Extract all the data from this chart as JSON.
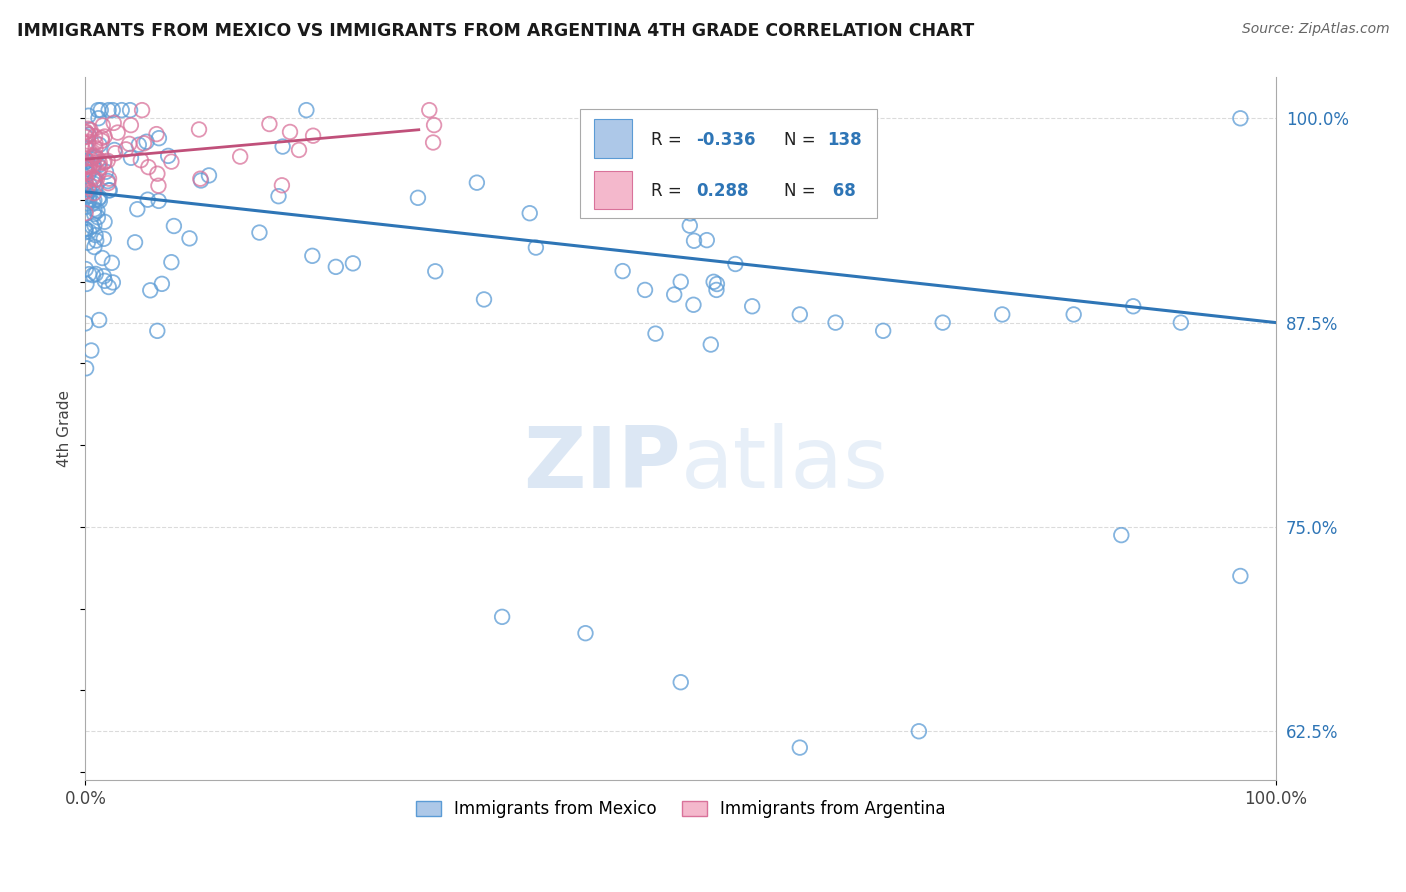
{
  "title": "IMMIGRANTS FROM MEXICO VS IMMIGRANTS FROM ARGENTINA 4TH GRADE CORRELATION CHART",
  "source": "Source: ZipAtlas.com",
  "ylabel": "4th Grade",
  "xlim": [
    0.0,
    1.0
  ],
  "ylim": [
    0.595,
    1.025
  ],
  "ytick_labels_right": [
    "62.5%",
    "75.0%",
    "87.5%",
    "100.0%"
  ],
  "ytick_vals_right": [
    0.625,
    0.75,
    0.875,
    1.0
  ],
  "mexico_color": "#adc8e8",
  "mexico_edge": "#5b9bd5",
  "argentina_color": "#f4b8cc",
  "argentina_edge": "#d9729a",
  "trendline_mexico_color": "#2e75b6",
  "trendline_argentina_color": "#c0507a",
  "legend_box_color": "#adc8e8",
  "legend_box_argentina": "#f4b8cc",
  "legend_r_color": "#2e75b6",
  "legend_n_color": "#2e75b6",
  "watermark_zip": "ZIP",
  "watermark_atlas": "atlas",
  "watermark_color_zip": "#c5d8ee",
  "watermark_color_atlas": "#c5d8ee",
  "grid_color": "#d3d3d3",
  "background_color": "#ffffff",
  "trendline_mex_x0": 0.0,
  "trendline_mex_y0": 0.955,
  "trendline_mex_x1": 1.0,
  "trendline_mex_y1": 0.875,
  "trendline_arg_x0": 0.0,
  "trendline_arg_y0": 0.975,
  "trendline_arg_x1": 0.28,
  "trendline_arg_y1": 0.993
}
